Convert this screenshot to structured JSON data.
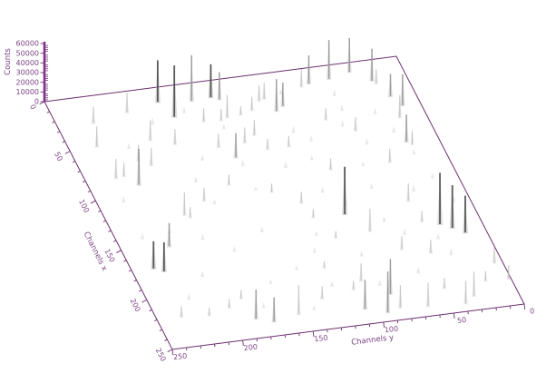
{
  "figure": {
    "background": "#ffffff",
    "axis_line_color": "#6b2f6e",
    "counts_axis_color": "#7b3585",
    "label_color": "#7c4585"
  },
  "chart_data": {
    "type": "3d-spike-histogram",
    "title": "",
    "axes": {
      "z": {
        "label": "Counts",
        "range": [
          0,
          60000
        ],
        "major_ticks": [
          0,
          10000,
          20000,
          30000,
          40000,
          50000,
          60000
        ],
        "minor_tick_step": 2000
      },
      "x": {
        "label": "Channels x",
        "range": [
          0,
          250
        ],
        "major_ticks": [
          0,
          50,
          100,
          150,
          200,
          250
        ],
        "minor_tick_step": 10
      },
      "y": {
        "label": "Channels y",
        "range": [
          0,
          250
        ],
        "major_ticks": [
          250,
          200,
          150,
          100,
          50,
          0
        ],
        "minor_tick_step": 10,
        "reversed": true
      }
    },
    "grid": false,
    "legend": false,
    "points_columns": [
      "channel_x",
      "channel_y",
      "counts",
      "shade"
    ],
    "points": [
      [
        15,
        175,
        44000,
        "dark"
      ],
      [
        31,
        169,
        54000,
        "dark"
      ],
      [
        18,
        152,
        48000,
        "medium"
      ],
      [
        17,
        138,
        35000,
        "dark"
      ],
      [
        20,
        133,
        29000,
        "medium"
      ],
      [
        16,
        68,
        30000,
        "medium"
      ],
      [
        14,
        53,
        41000,
        "medium"
      ],
      [
        10,
        37,
        36000,
        "medium"
      ],
      [
        21,
        25,
        34000,
        "medium"
      ],
      [
        144,
        89,
        50000,
        "dark"
      ],
      [
        165,
        29,
        54000,
        "dark"
      ],
      [
        170,
        22,
        45000,
        "dark"
      ],
      [
        176,
        15,
        39000,
        "dark"
      ],
      [
        172,
        235,
        29000,
        "dark"
      ],
      [
        176,
        229,
        31000,
        "dark"
      ],
      [
        232,
        184,
        31000,
        "medium"
      ],
      [
        237,
        173,
        26000,
        "medium"
      ],
      [
        233,
        154,
        31000,
        "light"
      ],
      [
        242,
        94,
        43000,
        "medium"
      ],
      [
        236,
        108,
        31000,
        "medium"
      ],
      [
        225,
        86,
        37000,
        "medium"
      ],
      [
        239,
        84,
        24000,
        "light"
      ],
      [
        241,
        65,
        25000,
        "light"
      ],
      [
        243,
        39,
        24000,
        "light"
      ],
      [
        237,
        31,
        26000,
        "light"
      ],
      [
        50,
        231,
        22000,
        "light"
      ],
      [
        91,
        216,
        38000,
        "medium"
      ],
      [
        82,
        229,
        21000,
        "light"
      ],
      [
        81,
        223,
        14500,
        "light"
      ],
      [
        74,
        201,
        19000,
        "light"
      ],
      [
        39,
        151,
        14500,
        "light"
      ],
      [
        40,
        139,
        12500,
        "light"
      ],
      [
        77,
        142,
        26000,
        "medium"
      ],
      [
        65,
        150,
        14500,
        "light"
      ],
      [
        58,
        122,
        16500,
        "light"
      ],
      [
        73,
        118,
        11500,
        "light"
      ],
      [
        73,
        103,
        11500,
        "light"
      ],
      [
        52,
        69,
        12500,
        "light"
      ],
      [
        66,
        53,
        14500,
        "light"
      ],
      [
        83,
        23,
        29000,
        "medium"
      ],
      [
        86,
        20,
        14500,
        "light"
      ],
      [
        59,
        19,
        24000,
        "light"
      ],
      [
        48,
        13,
        33000,
        "medium"
      ],
      [
        24,
        23,
        15500,
        "light"
      ],
      [
        38,
        18,
        24000,
        "medium"
      ],
      [
        18,
        74,
        19000,
        "light"
      ],
      [
        38,
        99,
        34000,
        "medium"
      ],
      [
        34,
        93,
        25000,
        "medium"
      ],
      [
        68,
        208,
        17000,
        "light"
      ],
      [
        64,
        131,
        16500,
        "light"
      ],
      [
        100,
        83,
        12500,
        "light"
      ],
      [
        114,
        130,
        9500,
        "light"
      ],
      [
        128,
        114,
        12500,
        "light"
      ],
      [
        143,
        111,
        9500,
        "light"
      ],
      [
        102,
        156,
        11500,
        "light"
      ],
      [
        114,
        178,
        14500,
        "light"
      ],
      [
        128,
        193,
        11500,
        "light"
      ],
      [
        139,
        42,
        19000,
        "light"
      ],
      [
        100,
        41,
        14500,
        "light"
      ],
      [
        160,
        40,
        11500,
        "light"
      ],
      [
        191,
        45,
        14500,
        "light"
      ],
      [
        208,
        6,
        16500,
        "light"
      ],
      [
        225,
        2,
        14500,
        "light"
      ],
      [
        221,
        233,
        11500,
        "light"
      ],
      [
        223,
        214,
        8500,
        "light"
      ],
      [
        218,
        198,
        9500,
        "light"
      ],
      [
        27,
        225,
        18000,
        "light"
      ],
      [
        21,
        199,
        21000,
        "light"
      ],
      [
        50,
        193,
        21000,
        "light"
      ],
      [
        57,
        178,
        16500,
        "light"
      ],
      [
        125,
        196,
        24000,
        "light"
      ],
      [
        153,
        217,
        25000,
        "medium"
      ],
      [
        211,
        187,
        9500,
        "light"
      ],
      [
        221,
        133,
        13500,
        "light"
      ],
      [
        216,
        109,
        9500,
        "light"
      ],
      [
        226,
        48,
        11500,
        "light"
      ],
      [
        224,
        18,
        10500,
        "light"
      ],
      [
        26,
        107,
        16500,
        "light"
      ],
      [
        25,
        103,
        17500,
        "light"
      ],
      [
        34,
        115,
        14500,
        "light"
      ],
      [
        38,
        134,
        24000,
        "light"
      ],
      [
        37,
        124,
        9500,
        "light"
      ],
      [
        209,
        101,
        19000,
        "light"
      ],
      [
        163,
        78,
        24000,
        "light"
      ],
      [
        184,
        63,
        14500,
        "light"
      ],
      [
        165,
        103,
        7500,
        "light"
      ],
      [
        192,
        121,
        7500,
        "light"
      ],
      [
        60,
        60,
        6000,
        "faint"
      ],
      [
        92,
        112,
        7000,
        "faint"
      ],
      [
        122,
        62,
        5000,
        "faint"
      ],
      [
        150,
        150,
        6000,
        "faint"
      ],
      [
        105,
        232,
        7000,
        "faint"
      ],
      [
        140,
        212,
        5500,
        "faint"
      ],
      [
        176,
        122,
        6000,
        "faint"
      ],
      [
        200,
        162,
        5000,
        "faint"
      ],
      [
        60,
        95,
        7500,
        "faint"
      ],
      [
        45,
        55,
        6500,
        "faint"
      ],
      [
        130,
        35,
        7000,
        "faint"
      ],
      [
        155,
        65,
        5500,
        "faint"
      ],
      [
        185,
        92,
        6000,
        "faint"
      ],
      [
        210,
        122,
        5500,
        "faint"
      ],
      [
        95,
        177,
        7000,
        "faint"
      ],
      [
        70,
        86,
        6000,
        "faint"
      ],
      [
        35,
        186,
        8000,
        "faint"
      ],
      [
        28,
        161,
        7000,
        "faint"
      ],
      [
        205,
        222,
        6500,
        "faint"
      ],
      [
        230,
        142,
        5500,
        "faint"
      ],
      [
        150,
        192,
        6000,
        "faint"
      ],
      [
        120,
        96,
        6500,
        "faint"
      ],
      [
        80,
        50,
        7000,
        "faint"
      ],
      [
        170,
        56,
        6000,
        "faint"
      ],
      [
        195,
        32,
        7500,
        "faint"
      ],
      [
        110,
        140,
        5000,
        "faint"
      ],
      [
        85,
        140,
        6000,
        "faint"
      ],
      [
        55,
        210,
        6500,
        "faint"
      ],
      [
        165,
        175,
        5500,
        "faint"
      ],
      [
        190,
        140,
        5000,
        "faint"
      ],
      [
        215,
        90,
        6500,
        "faint"
      ],
      [
        100,
        60,
        5500,
        "faint"
      ],
      [
        75,
        165,
        6000,
        "faint"
      ],
      [
        135,
        85,
        6500,
        "faint"
      ],
      [
        160,
        115,
        5000,
        "faint"
      ],
      [
        222,
        175,
        6000,
        "faint"
      ],
      [
        48,
        140,
        5500,
        "faint"
      ],
      [
        88,
        92,
        5000,
        "faint"
      ],
      [
        118,
        172,
        5500,
        "faint"
      ],
      [
        142,
        232,
        6500,
        "faint"
      ],
      [
        185,
        205,
        6000,
        "faint"
      ],
      [
        208,
        60,
        7000,
        "faint"
      ],
      [
        52,
        34,
        6000,
        "faint"
      ],
      [
        72,
        28,
        6500,
        "faint"
      ],
      [
        95,
        22,
        5500,
        "faint"
      ],
      [
        120,
        18,
        6000,
        "faint"
      ],
      [
        145,
        12,
        6500,
        "faint"
      ],
      [
        178,
        35,
        5500,
        "faint"
      ],
      [
        30,
        55,
        7000,
        "faint"
      ],
      [
        22,
        90,
        6000,
        "faint"
      ]
    ]
  }
}
